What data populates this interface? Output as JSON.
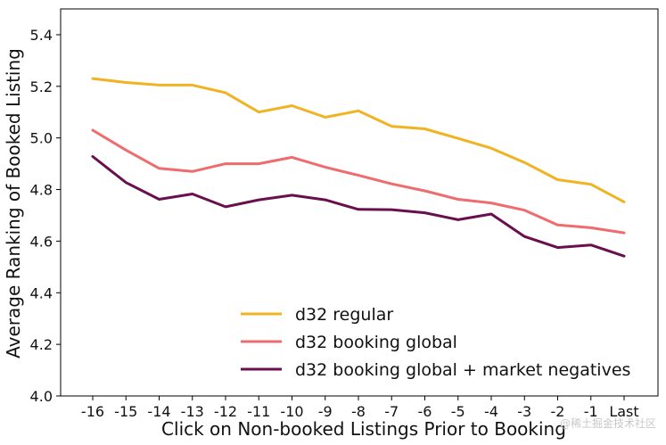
{
  "chart_data": {
    "type": "line",
    "title": "",
    "xlabel": "Click on Non-booked Listings Prior to Booking",
    "ylabel": "Average Ranking of Booked Listing",
    "categories": [
      "-16",
      "-15",
      "-14",
      "-13",
      "-12",
      "-11",
      "-10",
      "-9",
      "-8",
      "-7",
      "-6",
      "-5",
      "-4",
      "-3",
      "-2",
      "-1",
      "Last"
    ],
    "ylim": [
      4.0,
      5.5
    ],
    "yticks": [
      "4.0",
      "4.2",
      "4.4",
      "4.6",
      "4.8",
      "5.0",
      "5.2",
      "5.4"
    ],
    "grid": false,
    "legend_position": "bottom-center",
    "series": [
      {
        "name": "d32 regular",
        "color": "#F0B323",
        "values": [
          5.23,
          5.215,
          5.205,
          5.205,
          5.175,
          5.1,
          5.125,
          5.08,
          5.105,
          5.045,
          5.035,
          4.998,
          4.96,
          4.905,
          4.838,
          4.82,
          4.752
        ]
      },
      {
        "name": "d32 booking global",
        "color": "#EE6B6E",
        "values": [
          5.03,
          4.953,
          4.882,
          4.87,
          4.9,
          4.9,
          4.925,
          4.887,
          4.855,
          4.822,
          4.795,
          4.762,
          4.748,
          4.72,
          4.663,
          4.652,
          4.632
        ]
      },
      {
        "name": "d32 booking global + market negatives",
        "color": "#6A0F4E",
        "values": [
          4.928,
          4.827,
          4.762,
          4.783,
          4.733,
          4.76,
          4.778,
          4.76,
          4.723,
          4.722,
          4.71,
          4.683,
          4.705,
          4.618,
          4.575,
          4.585,
          4.542
        ]
      }
    ]
  },
  "watermark": "@稀土掘金技术社区"
}
